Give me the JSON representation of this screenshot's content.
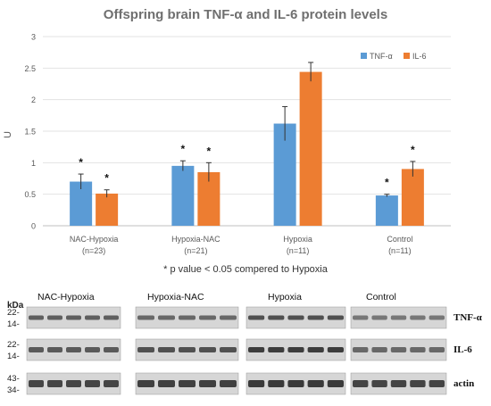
{
  "chart_data": {
    "type": "bar",
    "title": "Offspring brain TNF-α and IL-6 protein levels",
    "ylabel": "U",
    "ylim": [
      0,
      3
    ],
    "yticks": [
      "0",
      "0.5",
      "1",
      "1.5",
      "2",
      "2.5",
      "3"
    ],
    "categories": [
      "NAC-Hypoxia",
      "Hypoxia-NAC",
      "Hypoxia",
      "Control"
    ],
    "category_n": [
      "(n=23)",
      "(n=21)",
      "(n=11)",
      "(n=11)"
    ],
    "legend_position": "top-right",
    "series": [
      {
        "name": "TNF-α",
        "color": "#5b9bd5",
        "values": [
          0.7,
          0.95,
          1.62,
          0.48
        ],
        "errors": [
          0.12,
          0.08,
          0.27,
          0.02
        ],
        "significant": [
          true,
          true,
          false,
          true
        ]
      },
      {
        "name": "IL-6",
        "color": "#ed7d31",
        "values": [
          0.51,
          0.85,
          2.44,
          0.9
        ],
        "errors": [
          0.06,
          0.15,
          0.15,
          0.12
        ],
        "significant": [
          true,
          true,
          false,
          true
        ]
      }
    ],
    "significance_marker": "*",
    "footnote": "* p value < 0.05 compered to Hypoxia"
  },
  "blot": {
    "kda_header": "kDa",
    "group_labels": [
      "NAC-Hypoxia",
      "Hypoxia-NAC",
      "Hypoxia",
      "Control"
    ],
    "rows": [
      {
        "protein": "TNF-α",
        "markers": [
          "22-",
          "14-"
        ]
      },
      {
        "protein": "IL-6",
        "markers": [
          "22-",
          "14-"
        ]
      },
      {
        "protein": "actin",
        "markers": [
          "43-",
          "34-"
        ]
      }
    ]
  }
}
